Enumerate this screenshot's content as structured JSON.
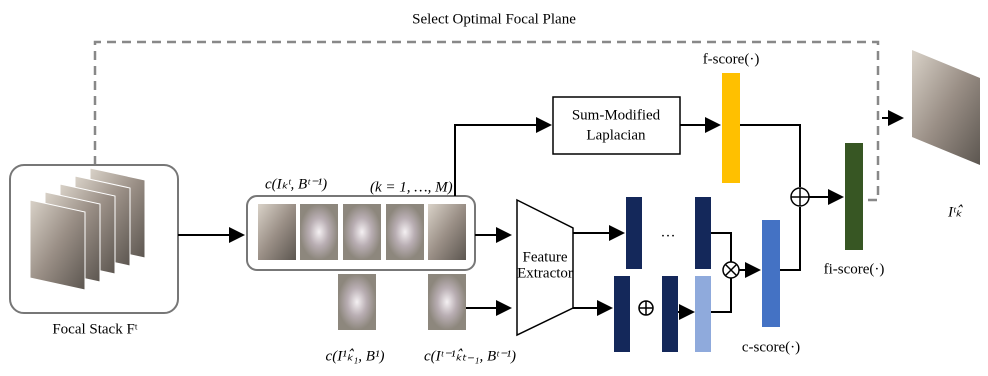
{
  "title": "Select Optimal Focal Plane",
  "focal_stack": {
    "label": "Focal Stack Fᵗ"
  },
  "candidates": {
    "label": "c(Iₖᵗ, Bᵗ⁻¹)",
    "range": "(k = 1, …, M)"
  },
  "history": {
    "first": "c(I¹ₖ̂₁, B¹)",
    "previous": "c(Iᵗ⁻¹ₖ̂ₜ₋₁, Bᵗ⁻¹)"
  },
  "sml": {
    "line1": "Sum-Modified",
    "line2": "Laplacian"
  },
  "extractor": {
    "line1": "Feature",
    "line2": "Extractor"
  },
  "ellipsis": "…",
  "scores": {
    "f": "f-score(·)",
    "c": "c-score(·)",
    "fi": "fi-score(·)"
  },
  "output": {
    "label": "Iᵗₖ̂"
  }
}
